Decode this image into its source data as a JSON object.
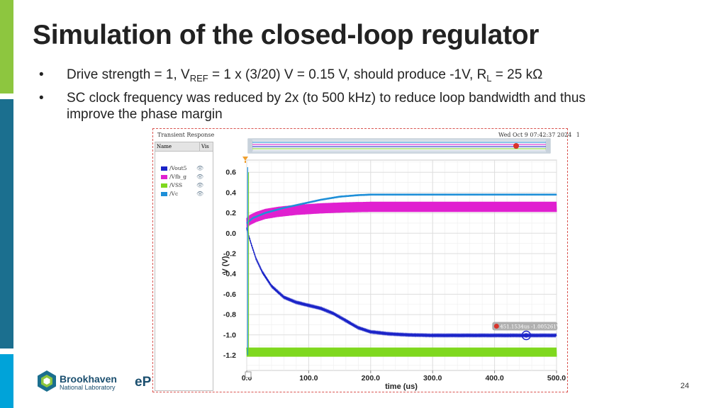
{
  "slide": {
    "title": "Simulation of the closed-loop regulator",
    "bullets": [
      {
        "symbol": "•",
        "parts": [
          "Drive strength = 1, V",
          "REF",
          " = 1 x (3/20) V = 0.15 V, should produce -1V, R",
          "L",
          " = 25 kΩ"
        ]
      },
      {
        "symbol": "•",
        "lines": [
          "SC clock frequency was reduced by 2x (to 500 kHz) to reduce loop bandwidth and thus",
          "improve the phase margin"
        ]
      }
    ],
    "page_number": "24",
    "logo": {
      "name": "Brookhaven",
      "subname": "National Laboratory",
      "extra": "eP"
    },
    "accent_colors": [
      "#8dc63f",
      "#1b6f8f",
      "#00a3d9"
    ]
  },
  "chart_data": {
    "type": "line",
    "window_title": "Transient Response",
    "timestamp": "Wed Oct 9 07:42:37 2024",
    "timestamp_suffix": "1",
    "panel_headers": [
      "Name",
      "Vis"
    ],
    "xlabel": "time (us)",
    "ylabel": "V (V)",
    "xlim": [
      0,
      500
    ],
    "ylim": [
      -1.35,
      0.72
    ],
    "x_ticks": [
      "0.0",
      "100.0",
      "200.0",
      "300.0",
      "400.0",
      "500.0"
    ],
    "y_ticks": [
      "0.6",
      "0.4",
      "0.2",
      "0.0",
      "-0.2",
      "-0.4",
      "-0.6",
      "-0.8",
      "-1.0",
      "-1.2"
    ],
    "grid": true,
    "legend": "left-panel",
    "marker_label": "451.1534us -1.005261V",
    "marker": {
      "x": 451.15,
      "y": -1.005
    },
    "series": [
      {
        "name": "/Vout5",
        "color": "#1a23c8",
        "ripple": 0.006,
        "x": [
          0,
          3,
          8,
          15,
          25,
          40,
          60,
          80,
          100,
          120,
          140,
          160,
          180,
          200,
          230,
          260,
          300,
          350,
          400,
          450,
          500
        ],
        "y": [
          0.05,
          -0.02,
          -0.12,
          -0.25,
          -0.38,
          -0.52,
          -0.63,
          -0.68,
          -0.71,
          -0.74,
          -0.79,
          -0.86,
          -0.93,
          -0.97,
          -0.99,
          -1.0,
          -1.005,
          -1.005,
          -1.005,
          -1.005,
          -1.005
        ]
      },
      {
        "name": "/Vfb_g",
        "color": "#e020d0",
        "ripple": 0.05,
        "x": [
          0,
          5,
          15,
          30,
          50,
          80,
          120,
          160,
          200,
          300,
          400,
          500
        ],
        "y": [
          0.1,
          0.13,
          0.16,
          0.19,
          0.21,
          0.23,
          0.245,
          0.255,
          0.26,
          0.26,
          0.26,
          0.26
        ]
      },
      {
        "name": "/VSS",
        "color": "#7fd81e",
        "ripple": 0.045,
        "x": [
          0,
          500
        ],
        "y": [
          -1.17,
          -1.17
        ]
      },
      {
        "name": "/Vc",
        "color": "#1e8fd8",
        "ripple": 0.008,
        "x": [
          0,
          10,
          30,
          60,
          90,
          120,
          150,
          180,
          200,
          230,
          300,
          400,
          500
        ],
        "y": [
          0.1,
          0.15,
          0.2,
          0.25,
          0.29,
          0.33,
          0.36,
          0.375,
          0.38,
          0.38,
          0.38,
          0.38,
          0.38
        ]
      }
    ]
  }
}
